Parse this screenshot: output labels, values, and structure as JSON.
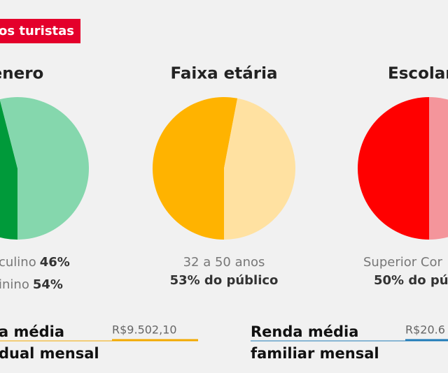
{
  "banner": "os turistas",
  "charts": [
    {
      "title": "ênero",
      "slices": [
        {
          "value": 46,
          "color": "#009a3a"
        },
        {
          "value": 54,
          "color": "#85d7ad"
        }
      ],
      "lines": [
        {
          "text": "culino",
          "bold": "46%"
        },
        {
          "text": "inino",
          "bold": "54%"
        }
      ]
    },
    {
      "title": "Faixa etária",
      "slices": [
        {
          "value": 53,
          "color": "#ffb300"
        },
        {
          "value": 47,
          "color": "#ffe1a1"
        }
      ],
      "caption": "32 a 50 anos",
      "highlight": "53% do público"
    },
    {
      "title": "Escolarid",
      "slices": [
        {
          "value": 50,
          "color": "#ff0000"
        },
        {
          "value": 50,
          "color": "#f4959b"
        }
      ],
      "caption": "Superior Cor",
      "highlight": "50% do pú"
    }
  ],
  "income": [
    {
      "lines": [
        "a média",
        "dual mensal"
      ],
      "value": "R$9.502,10",
      "color": "#f2a900"
    },
    {
      "lines": [
        "Renda média",
        "familiar mensal"
      ],
      "value": "R$20.6",
      "color": "#1f7bb8"
    }
  ]
}
